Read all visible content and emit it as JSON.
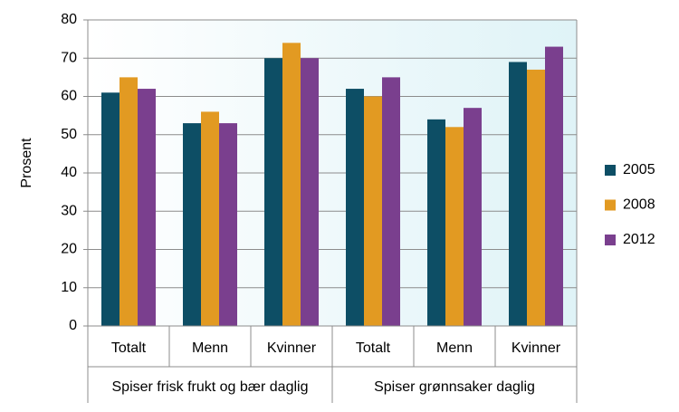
{
  "chart_data": {
    "type": "bar",
    "y_label": "Prosent",
    "groups": [
      {
        "name": "Spiser frisk frukt og bær daglig",
        "categories": [
          "Totalt",
          "Menn",
          "Kvinner"
        ]
      },
      {
        "name": "Spiser grønnsaker daglig",
        "categories": [
          "Totalt",
          "Menn",
          "Kvinner"
        ]
      }
    ],
    "series": [
      {
        "name": "2005",
        "color": "#0d4e65",
        "values": [
          61,
          53,
          70,
          62,
          54,
          69
        ]
      },
      {
        "name": "2008",
        "color": "#e29a22",
        "values": [
          65,
          56,
          74,
          60,
          52,
          67
        ]
      },
      {
        "name": "2012",
        "color": "#7a3f8e",
        "values": [
          62,
          53,
          70,
          65,
          57,
          73
        ]
      }
    ],
    "ylim": [
      0,
      80
    ],
    "yticks": [
      0,
      10,
      20,
      30,
      40,
      50,
      60,
      70,
      80
    ],
    "grid": true,
    "legend": "right"
  }
}
